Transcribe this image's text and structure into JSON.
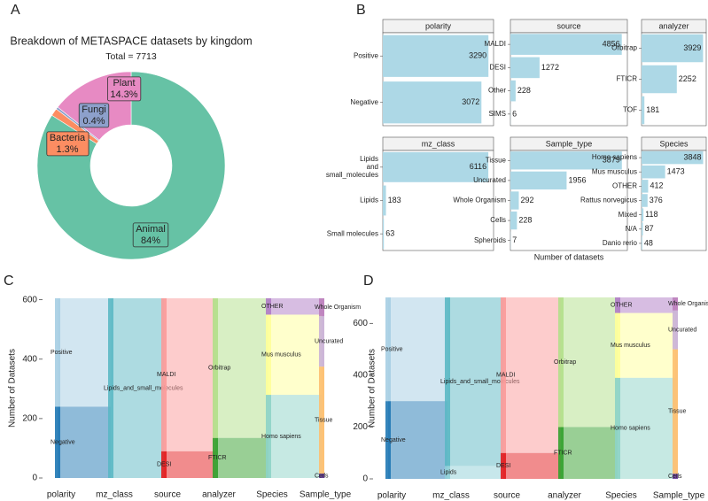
{
  "panel_labels": [
    "A",
    "B",
    "C",
    "D"
  ],
  "chart_data": [
    {
      "type": "pie",
      "title": "Breakdown of METASPACE datasets by kingdom",
      "subtitle": "Total = 7713",
      "categories": [
        "Animal",
        "Bacteria",
        "Fungi",
        "Plant"
      ],
      "values": [
        84,
        1.3,
        0.4,
        14.3
      ],
      "value_labels": [
        "84%",
        "1.3%",
        "0.4%",
        "14.3%"
      ],
      "colors": [
        "#66c2a5",
        "#fc8d62",
        "#8da0cb",
        "#e78ac3"
      ]
    },
    {
      "type": "bar",
      "title": "polarity",
      "categories": [
        "Positive",
        "Negative"
      ],
      "values": [
        3290,
        3072
      ],
      "xlim": [
        0,
        3450
      ],
      "color": "#add8e6"
    },
    {
      "type": "bar",
      "title": "source",
      "categories": [
        "MALDI",
        "DESI",
        "Other",
        "SIMS"
      ],
      "values": [
        4856,
        1272,
        228,
        6
      ],
      "xlim": [
        0,
        5100
      ],
      "color": "#add8e6"
    },
    {
      "type": "bar",
      "title": "analyzer",
      "categories": [
        "Orbitrap",
        "FTICR",
        "TOF"
      ],
      "values": [
        3929,
        2252,
        181
      ],
      "xlim": [
        0,
        4130
      ],
      "color": "#add8e6"
    },
    {
      "type": "bar",
      "title": "mz_class",
      "categories": [
        "Lipids and small_molecules",
        "Lipids",
        "Small molecules"
      ],
      "values": [
        6116,
        183,
        63
      ],
      "xlim": [
        0,
        6420
      ],
      "color": "#add8e6"
    },
    {
      "type": "bar",
      "title": "Sample_type",
      "categories": [
        "Tissue",
        "Uncurated",
        "Whole Organism",
        "Cells",
        "Spheroids"
      ],
      "values": [
        3879,
        1956,
        292,
        228,
        7
      ],
      "xlim": [
        0,
        4070
      ],
      "color": "#add8e6",
      "xlabel": "Number of datasets"
    },
    {
      "type": "bar",
      "title": "Species",
      "categories": [
        "Homo sapiens",
        "Mus musculus",
        "OTHER",
        "Rattus norvegicus",
        "Mixed",
        "N/A",
        "Danio rerio"
      ],
      "values": [
        3848,
        1473,
        412,
        376,
        118,
        87,
        48
      ],
      "xlim": [
        0,
        4040
      ],
      "color": "#add8e6"
    },
    {
      "type": "alluvial",
      "ylabel": "Number of Datasets",
      "ylim": [
        0,
        605
      ],
      "yticks": [
        0,
        200,
        400,
        600
      ],
      "axes": [
        {
          "name": "polarity",
          "strata": [
            {
              "name": "Positive",
              "value": 365,
              "color": "#a6cee3"
            },
            {
              "name": "Negative",
              "value": 240,
              "color": "#1f78b4"
            }
          ]
        },
        {
          "name": "mz_class",
          "strata": [
            {
              "name": "Lipids_and_small_molecules",
              "value": 605,
              "color": "#5bb8c4"
            }
          ]
        },
        {
          "name": "source",
          "strata": [
            {
              "name": "MALDI",
              "value": 515,
              "color": "#fb9a99"
            },
            {
              "name": "DESI",
              "value": 90,
              "color": "#e31a1c"
            }
          ]
        },
        {
          "name": "analyzer",
          "strata": [
            {
              "name": "Orbitrap",
              "value": 470,
              "color": "#b2df8a"
            },
            {
              "name": "FTICR",
              "value": 135,
              "color": "#33a02c"
            }
          ]
        },
        {
          "name": "Species",
          "strata": [
            {
              "name": "OTHER",
              "value": 55,
              "color": "#b07cc6"
            },
            {
              "name": "Mus musculus",
              "value": 270,
              "color": "#ffff99"
            },
            {
              "name": "Homo sapiens",
              "value": 280,
              "color": "#8dd3c7"
            }
          ]
        },
        {
          "name": "Sample_type",
          "strata": [
            {
              "name": "Whole Organism",
              "value": 60,
              "color": "#bc80bd"
            },
            {
              "name": "Uncurated",
              "value": 170,
              "color": "#cab2d6"
            },
            {
              "name": "Tissue",
              "value": 360,
              "color": "#fdbf6f"
            },
            {
              "name": "Cells",
              "value": 15,
              "color": "#6a3d9a"
            }
          ]
        }
      ]
    },
    {
      "type": "alluvial",
      "ylabel": "Number of Datasets",
      "ylim": [
        0,
        700
      ],
      "yticks": [
        0,
        200,
        400,
        600
      ],
      "axes": [
        {
          "name": "polarity",
          "strata": [
            {
              "name": "Positive",
              "value": 400,
              "color": "#a6cee3"
            },
            {
              "name": "Negative",
              "value": 300,
              "color": "#1f78b4"
            }
          ]
        },
        {
          "name": "mz_class",
          "strata": [
            {
              "name": "Lipids_and_small_molecules",
              "value": 650,
              "color": "#5bb8c4"
            },
            {
              "name": "Lipids",
              "value": 50,
              "color": "#8fd0d8"
            }
          ]
        },
        {
          "name": "source",
          "strata": [
            {
              "name": "MALDI",
              "value": 600,
              "color": "#fb9a99"
            },
            {
              "name": "DESI",
              "value": 100,
              "color": "#e31a1c"
            }
          ]
        },
        {
          "name": "analyzer",
          "strata": [
            {
              "name": "Orbitrap",
              "value": 500,
              "color": "#b2df8a"
            },
            {
              "name": "FTICR",
              "value": 200,
              "color": "#33a02c"
            }
          ]
        },
        {
          "name": "Species",
          "strata": [
            {
              "name": "OTHER",
              "value": 60,
              "color": "#b07cc6"
            },
            {
              "name": "Mus musculus",
              "value": 250,
              "color": "#ffff99"
            },
            {
              "name": "Homo sapiens",
              "value": 390,
              "color": "#8dd3c7"
            }
          ]
        },
        {
          "name": "Sample_type",
          "strata": [
            {
              "name": "Whole Organism",
              "value": 50,
              "color": "#bc80bd"
            },
            {
              "name": "Uncurated",
              "value": 150,
              "color": "#cab2d6"
            },
            {
              "name": "Tissue",
              "value": 480,
              "color": "#fdbf6f"
            },
            {
              "name": "Cells",
              "value": 20,
              "color": "#6a3d9a"
            }
          ]
        }
      ]
    }
  ]
}
